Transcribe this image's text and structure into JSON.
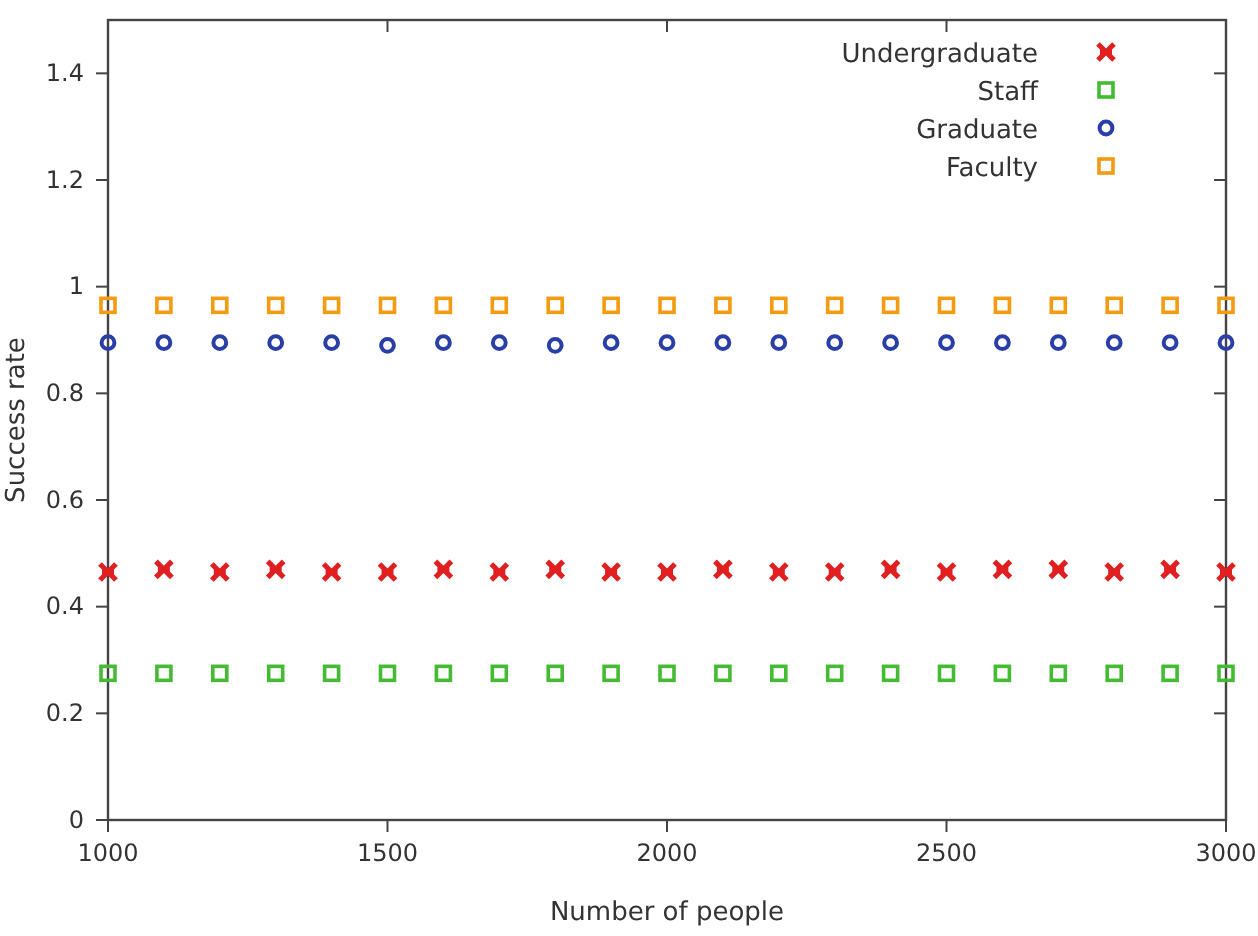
{
  "chart_data": {
    "type": "scatter",
    "xlabel": "Number of people",
    "ylabel": "Success rate",
    "x": [
      1000,
      1100,
      1200,
      1300,
      1400,
      1500,
      1600,
      1700,
      1800,
      1900,
      2000,
      2100,
      2200,
      2300,
      2400,
      2500,
      2600,
      2700,
      2800,
      2900,
      3000
    ],
    "series": [
      {
        "name": "Undergraduate",
        "color": "#e02020",
        "marker": "cross",
        "values": [
          0.465,
          0.47,
          0.465,
          0.47,
          0.465,
          0.465,
          0.47,
          0.465,
          0.47,
          0.465,
          0.465,
          0.47,
          0.465,
          0.465,
          0.47,
          0.465,
          0.47,
          0.47,
          0.465,
          0.47,
          0.465
        ]
      },
      {
        "name": "Staff",
        "color": "#44bb33",
        "marker": "square",
        "values": [
          0.275,
          0.275,
          0.275,
          0.275,
          0.275,
          0.275,
          0.275,
          0.275,
          0.275,
          0.275,
          0.275,
          0.275,
          0.275,
          0.275,
          0.275,
          0.275,
          0.275,
          0.275,
          0.275,
          0.275,
          0.275
        ]
      },
      {
        "name": "Graduate",
        "color": "#2a3ea8",
        "marker": "circle",
        "values": [
          0.895,
          0.895,
          0.895,
          0.895,
          0.895,
          0.89,
          0.895,
          0.895,
          0.89,
          0.895,
          0.895,
          0.895,
          0.895,
          0.895,
          0.895,
          0.895,
          0.895,
          0.895,
          0.895,
          0.895,
          0.895
        ]
      },
      {
        "name": "Faculty",
        "color": "#f39c12",
        "marker": "square",
        "values": [
          0.965,
          0.965,
          0.965,
          0.965,
          0.965,
          0.965,
          0.965,
          0.965,
          0.965,
          0.965,
          0.965,
          0.965,
          0.965,
          0.965,
          0.965,
          0.965,
          0.965,
          0.965,
          0.965,
          0.965,
          0.965
        ]
      }
    ],
    "xlim": [
      1000,
      3000
    ],
    "xticks": [
      1000,
      1500,
      2000,
      2500,
      3000
    ],
    "ylim": [
      0,
      1.5
    ],
    "yticks": [
      0,
      0.2,
      0.4,
      0.6,
      0.8,
      1,
      1.2,
      1.4
    ],
    "grid": false,
    "legend": "top right"
  }
}
